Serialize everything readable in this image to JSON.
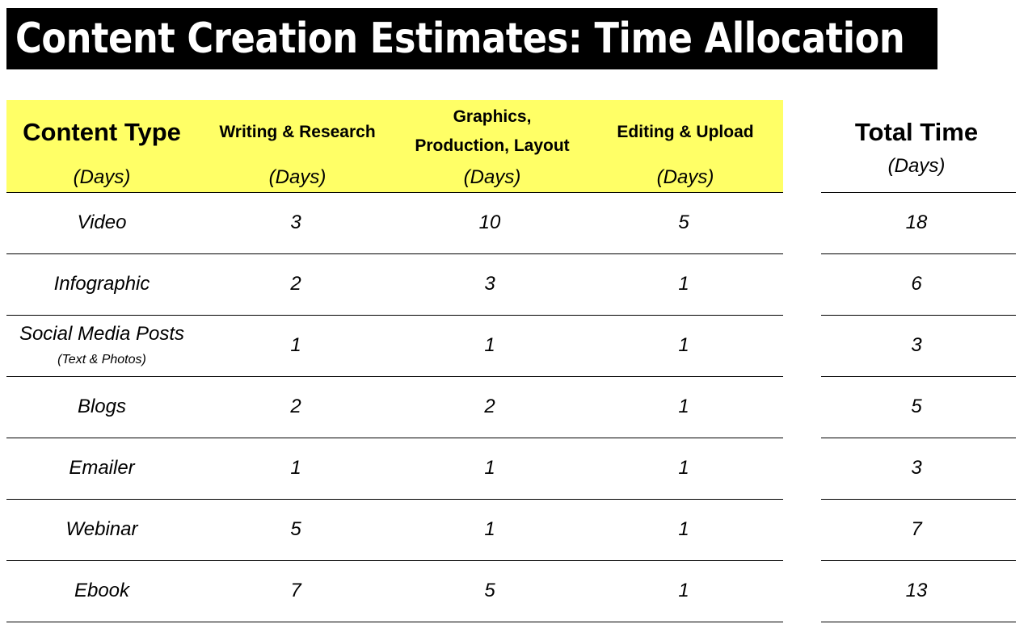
{
  "title": "Content Creation Estimates: Time Allocation",
  "header": {
    "content_type": "Content Type",
    "writing": "Writing & Research",
    "graphics_line1": "Graphics,",
    "graphics_line2": "Production, Layout",
    "editing": "Editing & Upload",
    "total": "Total Time",
    "unit": "(Days)"
  },
  "rows": [
    {
      "type": "Video",
      "sub": "",
      "writing": "3",
      "graphics": "10",
      "editing": "5",
      "total": "18"
    },
    {
      "type": "Infographic",
      "sub": "",
      "writing": "2",
      "graphics": "3",
      "editing": "1",
      "total": "6"
    },
    {
      "type": "Social Media Posts",
      "sub": "(Text & Photos)",
      "writing": "1",
      "graphics": "1",
      "editing": "1",
      "total": "3"
    },
    {
      "type": "Blogs",
      "sub": "",
      "writing": "2",
      "graphics": "2",
      "editing": "1",
      "total": "5"
    },
    {
      "type": "Emailer",
      "sub": "",
      "writing": "1",
      "graphics": "1",
      "editing": "1",
      "total": "3"
    },
    {
      "type": "Webinar",
      "sub": "",
      "writing": "5",
      "graphics": "1",
      "editing": "1",
      "total": "7"
    },
    {
      "type": "Ebook",
      "sub": "",
      "writing": "7",
      "graphics": "5",
      "editing": "1",
      "total": "13"
    }
  ],
  "colors": {
    "title_bg": "#000000",
    "title_text": "#ffffff",
    "header_bg": "#ffff66"
  }
}
